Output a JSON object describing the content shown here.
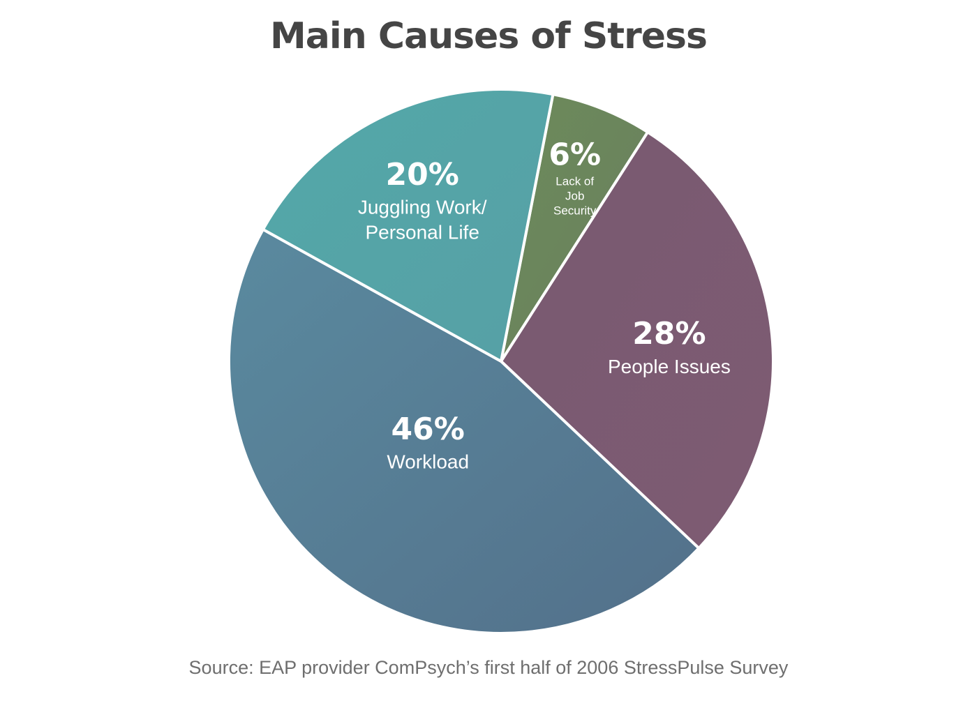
{
  "chart_data": {
    "type": "pie",
    "title": "Main Causes of Stress",
    "source": "Source: EAP provider ComPsych’s first half of 2006 StressPulse Survey",
    "slices": [
      {
        "label_lines": [
          "Lack of",
          "Job",
          "Security"
        ],
        "value": 6,
        "value_label": "6%",
        "color": "#6c8b5a",
        "color_end": "#6a7f5f"
      },
      {
        "label_lines": [
          "People Issues"
        ],
        "value": 28,
        "value_label": "28%",
        "color": "#785a70",
        "color_end": "#7e5b73"
      },
      {
        "label_lines": [
          "Workload"
        ],
        "value": 46,
        "value_label": "46%",
        "color": "#5a8a9f",
        "color_end": "#53708a"
      },
      {
        "label_lines": [
          "Juggling Work/",
          "Personal Life"
        ],
        "value": 20,
        "value_label": "20%",
        "color": "#53a8a8",
        "color_end": "#57a0a6"
      }
    ]
  }
}
